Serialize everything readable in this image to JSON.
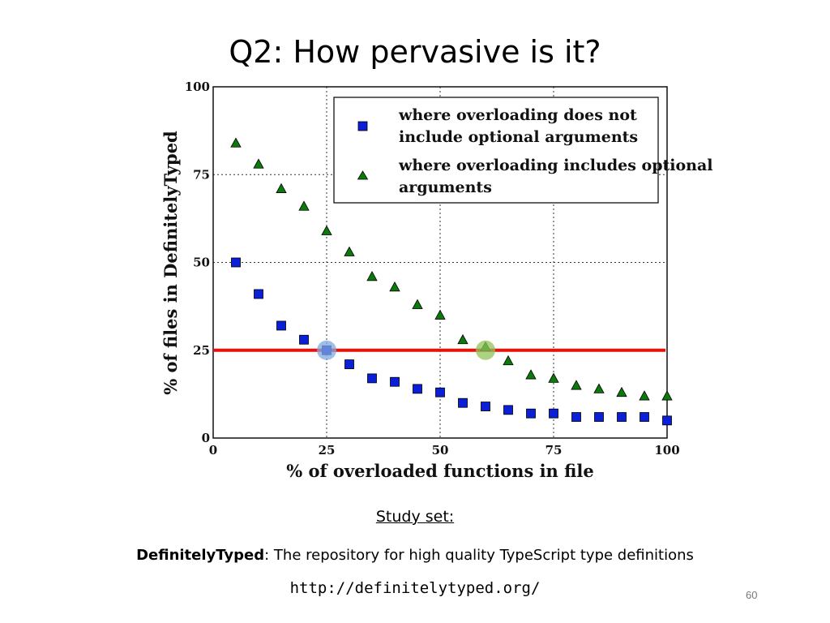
{
  "slide": {
    "title": "Q2: How pervasive is it?",
    "study_set_label": "Study set: ",
    "dataset_name": "DefinitelyTyped",
    "dataset_description": ": The repository for high quality TypeScript type definitions",
    "url": "http://definitelytyped.org/",
    "page_number": "60"
  },
  "chart_data": {
    "type": "scatter",
    "xlabel": "% of overloaded functions in file",
    "ylabel": "% of files in DefinitelyTyped",
    "xlim": [
      0,
      100
    ],
    "ylim": [
      0,
      100
    ],
    "xticks": [
      0,
      25,
      50,
      75,
      100
    ],
    "yticks": [
      0,
      25,
      50,
      75,
      100
    ],
    "grid": "dotted",
    "legend_position": "top-right",
    "series": [
      {
        "name": "where overloading does not include optional arguments",
        "marker": "square",
        "color": "#0a1fd6",
        "x": [
          5,
          10,
          15,
          20,
          25,
          30,
          35,
          40,
          45,
          50,
          55,
          60,
          65,
          70,
          75,
          80,
          85,
          90,
          95,
          100
        ],
        "y": [
          50,
          41,
          32,
          28,
          25,
          21,
          17,
          16,
          14,
          13,
          10,
          9,
          8,
          7,
          7,
          6,
          6,
          6,
          6,
          5
        ]
      },
      {
        "name": "where overloading includes optional arguments",
        "marker": "triangle",
        "color": "#0a7a0a",
        "x": [
          5,
          10,
          15,
          20,
          25,
          30,
          35,
          40,
          45,
          50,
          55,
          60,
          65,
          70,
          75,
          80,
          85,
          90,
          95,
          100
        ],
        "y": [
          84,
          78,
          71,
          66,
          59,
          53,
          46,
          43,
          38,
          35,
          28,
          26,
          22,
          18,
          17,
          15,
          14,
          13,
          12,
          12
        ]
      }
    ],
    "reference_line": {
      "y": 25,
      "color": "#e8120c"
    },
    "highlight_points": [
      {
        "x": 25,
        "y": 25,
        "color": "#7fa8e0"
      },
      {
        "x": 60,
        "y": 25,
        "color": "#8fc45a"
      }
    ]
  }
}
